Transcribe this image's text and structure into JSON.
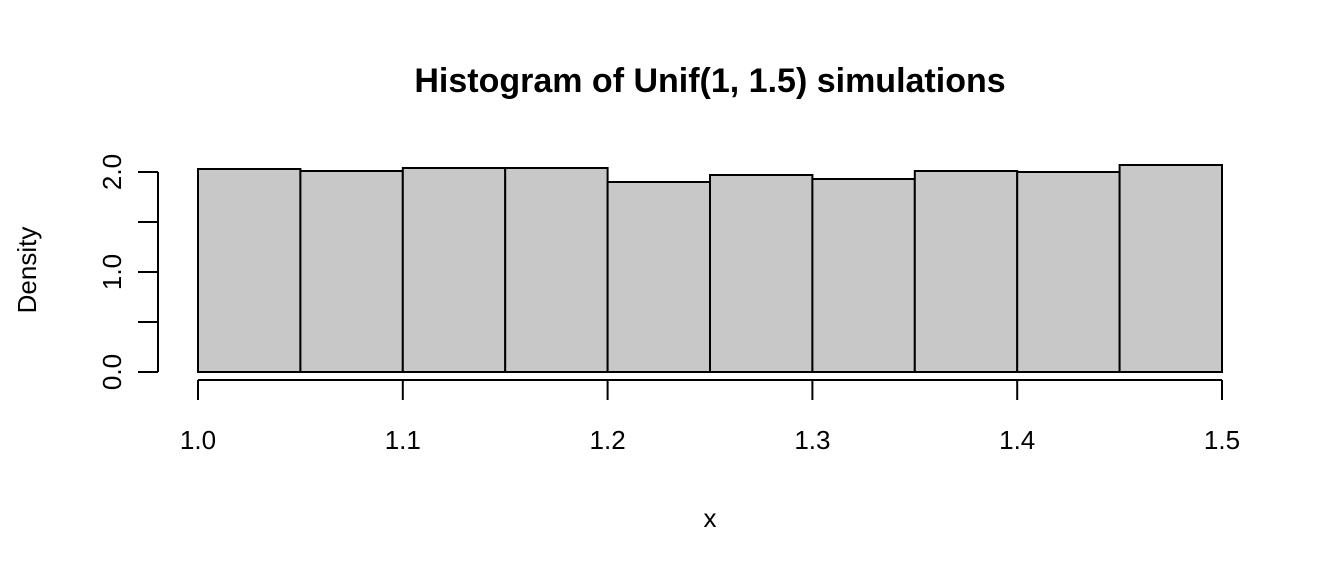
{
  "chart_data": {
    "type": "bar",
    "title": "Histogram of Unif(1, 1.5) simulations",
    "xlabel": "x",
    "ylabel": "Density",
    "bin_edges": [
      1.0,
      1.05,
      1.1,
      1.15,
      1.2,
      1.25,
      1.3,
      1.35,
      1.4,
      1.45,
      1.5
    ],
    "values": [
      2.03,
      2.01,
      2.04,
      2.04,
      1.9,
      1.97,
      1.93,
      2.01,
      2.0,
      2.07
    ],
    "xlim": [
      1.0,
      1.5
    ],
    "ylim": [
      0.0,
      2.0
    ],
    "x_ticks": [
      "1.0",
      "1.1",
      "1.2",
      "1.3",
      "1.4",
      "1.5"
    ],
    "y_ticks": [
      "0.0",
      "1.0",
      "2.0"
    ],
    "y_minor_ticks": [
      0.0,
      0.5,
      1.0,
      1.5,
      2.0
    ],
    "grid": false,
    "bar_color": "#c8c8c8",
    "edge_color": "#000000"
  }
}
